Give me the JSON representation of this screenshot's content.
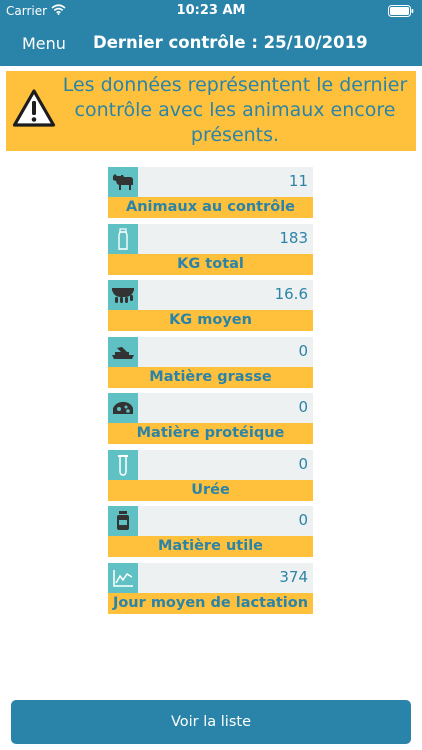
{
  "status_bar": {
    "carrier": "Carrier",
    "time": "10:23 AM"
  },
  "nav": {
    "menu_label": "Menu",
    "title": "Dernier contrôle : 25/10/2019"
  },
  "alert": {
    "message": "Les données représentent le dernier contrôle avec les animaux encore présents."
  },
  "metrics": [
    {
      "icon": "cow-icon",
      "value": "11",
      "label": "Animaux au contrôle"
    },
    {
      "icon": "milk-bottle-icon",
      "value": "183",
      "label": "KG total"
    },
    {
      "icon": "udder-icon",
      "value": "16.6",
      "label": "KG moyen"
    },
    {
      "icon": "butter-icon",
      "value": "0",
      "label": "Matière grasse"
    },
    {
      "icon": "cheese-icon",
      "value": "0",
      "label": "Matière protéique"
    },
    {
      "icon": "test-tube-icon",
      "value": "0",
      "label": "Urée"
    },
    {
      "icon": "jar-icon",
      "value": "0",
      "label": "Matière utile"
    },
    {
      "icon": "line-chart-icon",
      "value": "374",
      "label": "Jour moyen de lactation"
    }
  ],
  "footer": {
    "button_label": "Voir la liste"
  },
  "colors": {
    "primary": "#2a84a9",
    "accent": "#ffc13b",
    "icon_bg": "#5fc1c3",
    "text_blue": "#2b84a8",
    "card_bg": "#eef1f1"
  }
}
